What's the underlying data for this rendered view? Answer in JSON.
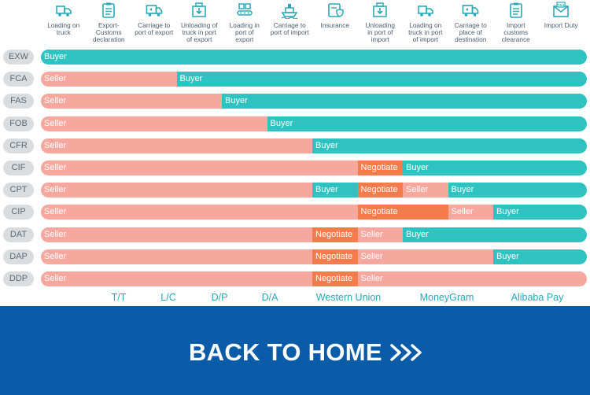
{
  "columns": [
    {
      "label": "Loading on\ntruck",
      "icon": "truck-loading-icon"
    },
    {
      "label": "Export-\nCustoms\ndeclaration",
      "icon": "clipboard-icon"
    },
    {
      "label": "Carriage to\nport of export",
      "icon": "delivery-truck-icon"
    },
    {
      "label": "Unloading of\ntruck in port\nof export",
      "icon": "unloading-box-icon"
    },
    {
      "label": "Loading in\nport of\nexport",
      "icon": "conveyor-icon"
    },
    {
      "label": "Carriage to\nport of import",
      "icon": "ship-icon"
    },
    {
      "label": "Insurance",
      "icon": "insurance-icon"
    },
    {
      "label": "Unloading\nin port of\nimport",
      "icon": "unloading-box-icon"
    },
    {
      "label": "Loading on\ntruck in port\nof import",
      "icon": "truck-loading-icon"
    },
    {
      "label": "Carriage to\nplace of\ndestination",
      "icon": "delivery-truck-icon"
    },
    {
      "label": "Import\ncustoms\nclearance",
      "icon": "clipboard-icon"
    },
    {
      "label": "Import Duty",
      "icon": "tax-envelope-icon"
    }
  ],
  "rows": [
    {
      "code": "EXW",
      "segments": [
        {
          "party": "Buyer",
          "from": 0,
          "to": 12
        }
      ]
    },
    {
      "code": "FCA",
      "segments": [
        {
          "party": "Seller",
          "from": 0,
          "to": 3
        },
        {
          "party": "Buyer",
          "from": 3,
          "to": 12
        }
      ]
    },
    {
      "code": "FAS",
      "segments": [
        {
          "party": "Seller",
          "from": 0,
          "to": 4
        },
        {
          "party": "Buyer",
          "from": 4,
          "to": 12
        }
      ]
    },
    {
      "code": "FOB",
      "segments": [
        {
          "party": "Seller",
          "from": 0,
          "to": 5
        },
        {
          "party": "Buyer",
          "from": 5,
          "to": 12
        }
      ]
    },
    {
      "code": "CFR",
      "segments": [
        {
          "party": "Seller",
          "from": 0,
          "to": 6
        },
        {
          "party": "Buyer",
          "from": 6,
          "to": 12
        }
      ]
    },
    {
      "code": "CIF",
      "segments": [
        {
          "party": "Seller",
          "from": 0,
          "to": 7
        },
        {
          "party": "Negotiate",
          "from": 7,
          "to": 8
        },
        {
          "party": "Buyer",
          "from": 8,
          "to": 12
        }
      ]
    },
    {
      "code": "CPT",
      "segments": [
        {
          "party": "Seller",
          "from": 0,
          "to": 6
        },
        {
          "party": "Buyer",
          "from": 6,
          "to": 7
        },
        {
          "party": "Negotiate",
          "from": 7,
          "to": 8
        },
        {
          "party": "Seller",
          "from": 8,
          "to": 9
        },
        {
          "party": "Buyer",
          "from": 9,
          "to": 12
        }
      ]
    },
    {
      "code": "CIP",
      "segments": [
        {
          "party": "Seller",
          "from": 0,
          "to": 7
        },
        {
          "party": "Negotiate",
          "from": 7,
          "to": 9
        },
        {
          "party": "Seller",
          "from": 9,
          "to": 10
        },
        {
          "party": "Buyer",
          "from": 10,
          "to": 12
        }
      ]
    },
    {
      "code": "DAT",
      "segments": [
        {
          "party": "Seller",
          "from": 0,
          "to": 6
        },
        {
          "party": "Negotiate",
          "from": 6,
          "to": 7
        },
        {
          "party": "Seller",
          "from": 7,
          "to": 8
        },
        {
          "party": "Buyer",
          "from": 8,
          "to": 12
        }
      ]
    },
    {
      "code": "DAP",
      "segments": [
        {
          "party": "Seller",
          "from": 0,
          "to": 6
        },
        {
          "party": "Negotiate",
          "from": 6,
          "to": 7
        },
        {
          "party": "Seller",
          "from": 7,
          "to": 10
        },
        {
          "party": "Buyer",
          "from": 10,
          "to": 12
        }
      ]
    },
    {
      "code": "DDP",
      "segments": [
        {
          "party": "Seller",
          "from": 0,
          "to": 6
        },
        {
          "party": "Negotiate",
          "from": 6,
          "to": 7
        },
        {
          "party": "Seller",
          "from": 7,
          "to": 12
        }
      ]
    }
  ],
  "payment_methods": [
    "T/T",
    "L/C",
    "D/P",
    "D/A",
    "Western Union",
    "MoneyGram",
    "Alibaba Pay"
  ],
  "back_button": {
    "label": "BACK TO HOME",
    "icon": "chevrons-right-icon"
  },
  "colors": {
    "seller": "#f6a89e",
    "buyer": "#2ec3c0",
    "negotiate": "#f47b4b",
    "footer": "#0a5ca8",
    "icon": "#2aa8b8"
  }
}
